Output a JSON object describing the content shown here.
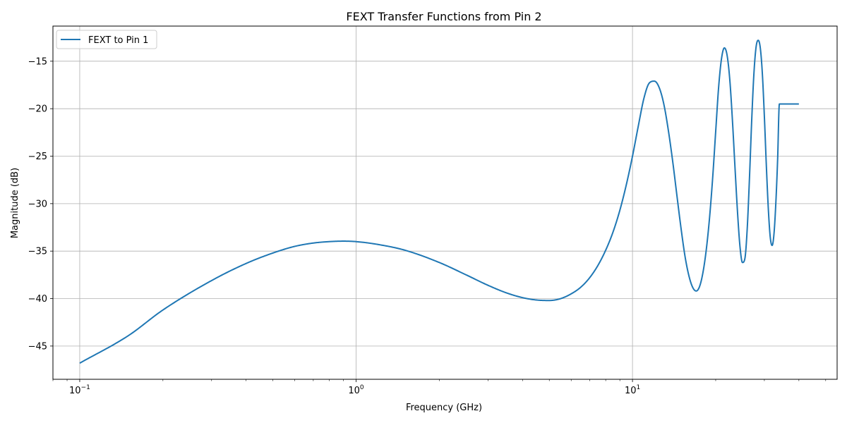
{
  "chart_data": {
    "type": "line",
    "title": "FEXT Transfer Functions from Pin 2",
    "xlabel": "Frequency (GHz)",
    "ylabel": "Magnitude (dB)",
    "xscale": "log",
    "xlim": [
      0.08,
      55
    ],
    "ylim": [
      -48.5,
      -11.3
    ],
    "grid": true,
    "legend_position": "top-left",
    "x_ticks": [
      {
        "value": 0.1,
        "base": "10",
        "exp": "−1"
      },
      {
        "value": 1,
        "base": "10",
        "exp": "0"
      },
      {
        "value": 10,
        "base": "10",
        "exp": "1"
      }
    ],
    "y_ticks": [
      {
        "value": -45,
        "label": "−45"
      },
      {
        "value": -40,
        "label": "−40"
      },
      {
        "value": -35,
        "label": "−35"
      },
      {
        "value": -30,
        "label": "−30"
      },
      {
        "value": -25,
        "label": "−25"
      },
      {
        "value": -20,
        "label": "−20"
      },
      {
        "value": -15,
        "label": "−15"
      }
    ],
    "series": [
      {
        "name": "FEXT to Pin 1",
        "color": "#1f77b4",
        "x": [
          0.1,
          0.15,
          0.2,
          0.3,
          0.4,
          0.5,
          0.6,
          0.7,
          0.8,
          0.9,
          1.0,
          1.2,
          1.5,
          2.0,
          2.5,
          3.0,
          3.5,
          4.0,
          4.5,
          5.0,
          5.5,
          6.0,
          6.5,
          7.0,
          7.5,
          8.0,
          8.5,
          9.0,
          9.5,
          10.0,
          10.5,
          11.0,
          11.5,
          12.0,
          12.5,
          13.0,
          13.5,
          14.0,
          14.5,
          15.0,
          15.5,
          16.0,
          16.5,
          17.0,
          17.5,
          18.0,
          18.5,
          19.0,
          19.5,
          20.0,
          20.5,
          21.0,
          21.5,
          22.0,
          22.5,
          23.0,
          23.5,
          24.0,
          24.5,
          25.0,
          25.5,
          26.0,
          26.5,
          27.0,
          27.5,
          28.0,
          28.5,
          29.0,
          29.5,
          30.0,
          30.5,
          31.0,
          31.5,
          32.0,
          32.5,
          33.0,
          33.5,
          34.0,
          34.5,
          35.0,
          35.5,
          36.0,
          36.5,
          37.0,
          37.5,
          38.0,
          38.5,
          39.0,
          39.5,
          40.0
        ],
        "values": [
          -46.8,
          -43.9,
          -41.2,
          -38.1,
          -36.3,
          -35.2,
          -34.5,
          -34.15,
          -34.0,
          -33.95,
          -34.0,
          -34.3,
          -34.9,
          -36.2,
          -37.5,
          -38.6,
          -39.4,
          -39.9,
          -40.15,
          -40.2,
          -40.0,
          -39.5,
          -38.8,
          -37.8,
          -36.5,
          -34.9,
          -33.0,
          -30.7,
          -28.0,
          -25.0,
          -21.8,
          -18.9,
          -17.3,
          -17.1,
          -17.8,
          -19.6,
          -22.4,
          -25.7,
          -29.3,
          -32.7,
          -35.6,
          -37.6,
          -38.8,
          -39.2,
          -38.7,
          -37.2,
          -34.8,
          -31.5,
          -27.3,
          -22.4,
          -17.7,
          -14.7,
          -13.6,
          -14.4,
          -17.0,
          -21.3,
          -26.3,
          -31.0,
          -34.6,
          -36.2,
          -35.8,
          -32.7,
          -27.3,
          -21.2,
          -16.3,
          -13.5,
          -12.8,
          -13.6,
          -16.3,
          -20.8,
          -26.0,
          -30.5,
          -33.5,
          -34.4,
          -33.2,
          -30.0,
          -25.4,
          -19.5,
          -19.5,
          -19.5,
          -19.5,
          -19.5,
          -19.5,
          -19.5,
          -19.5,
          -19.5,
          -19.5,
          -19.5,
          -19.5,
          -19.5
        ]
      }
    ]
  }
}
